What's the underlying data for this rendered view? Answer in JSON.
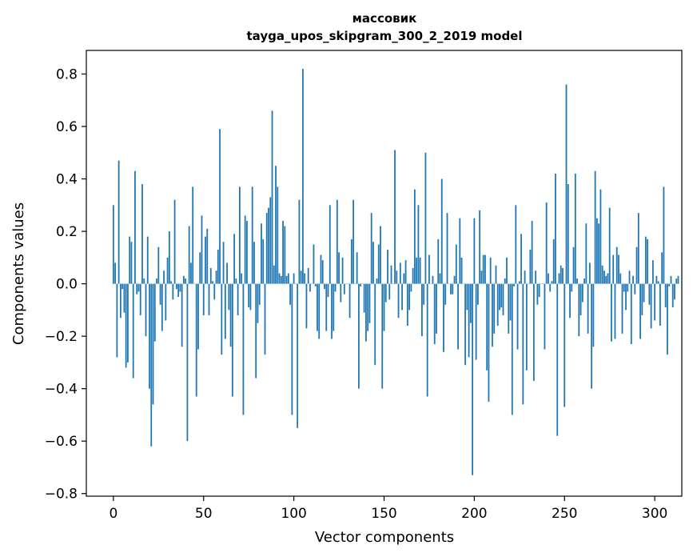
{
  "chart_data": {
    "type": "bar",
    "title_line1": "массовик",
    "title_line2": "tayga_upos_skipgram_300_2_2019 model",
    "xlabel": "Vector components",
    "ylabel": "Components values",
    "xlim": [
      -15,
      315
    ],
    "ylim": [
      -0.81,
      0.89
    ],
    "xticks": [
      0,
      50,
      100,
      150,
      200,
      250,
      300
    ],
    "xtick_labels": [
      "0",
      "50",
      "100",
      "150",
      "200",
      "250",
      "300"
    ],
    "yticks": [
      -0.8,
      -0.6,
      -0.4,
      -0.2,
      0.0,
      0.2,
      0.4,
      0.6,
      0.8
    ],
    "ytick_labels": [
      "−0.8",
      "−0.6",
      "−0.4",
      "−0.2",
      "0.0",
      "0.2",
      "0.4",
      "0.6",
      "0.8"
    ],
    "bar_color": "#1f77b4",
    "grid": false,
    "values": [
      0.3,
      0.08,
      -0.28,
      0.47,
      -0.13,
      -0.02,
      -0.11,
      -0.32,
      -0.3,
      0.18,
      0.16,
      -0.36,
      0.43,
      -0.04,
      -0.03,
      -0.12,
      0.38,
      0.02,
      -0.2,
      0.18,
      -0.4,
      -0.62,
      -0.46,
      -0.22,
      0.02,
      0.14,
      -0.08,
      -0.18,
      0.05,
      -0.14,
      0.1,
      0.2,
      0.01,
      -0.06,
      0.32,
      -0.02,
      -0.05,
      -0.03,
      -0.24,
      0.03,
      0.02,
      -0.6,
      0.22,
      0.08,
      0.37,
      0.0,
      -0.43,
      -0.25,
      0.12,
      0.26,
      -0.12,
      0.18,
      0.21,
      -0.12,
      0.06,
      0.01,
      -0.06,
      0.05,
      0.13,
      0.59,
      -0.27,
      0.16,
      -0.21,
      0.08,
      -0.1,
      -0.24,
      -0.43,
      0.19,
      0.02,
      -0.12,
      0.37,
      0.04,
      -0.5,
      0.26,
      0.24,
      -0.09,
      -0.1,
      0.37,
      0.16,
      -0.36,
      -0.15,
      -0.08,
      0.23,
      0.17,
      -0.27,
      0.27,
      0.29,
      0.33,
      0.66,
      0.07,
      0.45,
      0.37,
      0.04,
      0.03,
      0.24,
      0.22,
      0.03,
      0.04,
      -0.08,
      -0.5,
      0.04,
      0.0,
      -0.55,
      0.32,
      0.05,
      0.82,
      0.04,
      -0.17,
      0.06,
      -0.03,
      0.0,
      0.15,
      -0.01,
      -0.18,
      -0.21,
      0.11,
      0.09,
      -0.02,
      -0.18,
      -0.05,
      0.3,
      -0.21,
      -0.18,
      -0.03,
      0.32,
      0.12,
      -0.07,
      0.1,
      -0.04,
      0.0,
      0.0,
      -0.13,
      0.17,
      0.32,
      0.0,
      0.12,
      -0.4,
      -0.01,
      0.0,
      -0.11,
      -0.22,
      -0.18,
      -0.15,
      0.27,
      0.16,
      -0.31,
      0.02,
      0.15,
      0.22,
      -0.4,
      -0.18,
      -0.07,
      0.13,
      -0.06,
      0.07,
      0.0,
      0.51,
      0.05,
      -0.13,
      0.08,
      -0.1,
      0.04,
      0.09,
      -0.16,
      -0.1,
      -0.03,
      0.06,
      0.36,
      0.1,
      0.3,
      0.1,
      -0.2,
      -0.08,
      0.5,
      -0.43,
      0.11,
      0.0,
      0.03,
      -0.23,
      -0.19,
      0.17,
      0.04,
      0.4,
      -0.26,
      -0.08,
      0.27,
      0.0,
      -0.04,
      -0.04,
      0.03,
      0.15,
      -0.25,
      0.25,
      0.1,
      0.0,
      -0.31,
      -0.1,
      -0.28,
      -0.15,
      -0.73,
      0.25,
      -0.29,
      -0.08,
      0.28,
      0.05,
      0.11,
      0.11,
      -0.33,
      -0.45,
      0.1,
      -0.24,
      -0.19,
      0.07,
      -0.16,
      -0.1,
      -0.09,
      -0.12,
      0.02,
      0.1,
      -0.19,
      -0.14,
      -0.5,
      -0.01,
      0.3,
      -0.25,
      0.01,
      0.19,
      -0.46,
      0.05,
      -0.33,
      0.0,
      0.13,
      0.24,
      -0.37,
      0.05,
      -0.08,
      -0.05,
      0.0,
      0.0,
      -0.25,
      0.31,
      0.04,
      -0.03,
      0.01,
      0.17,
      0.42,
      -0.58,
      0.04,
      0.07,
      0.06,
      -0.47,
      0.76,
      0.38,
      -0.13,
      -0.03,
      0.14,
      0.42,
      0.02,
      -0.2,
      -0.12,
      -0.07,
      0.02,
      0.23,
      -0.19,
      0.08,
      -0.4,
      -0.24,
      0.43,
      0.25,
      0.23,
      0.36,
      0.07,
      0.05,
      0.03,
      0.04,
      0.29,
      -0.22,
      0.11,
      -0.21,
      0.14,
      0.11,
      0.04,
      -0.19,
      -0.03,
      -0.1,
      -0.03,
      0.05,
      -0.23,
      0.03,
      -0.04,
      0.14,
      0.27,
      -0.21,
      -0.12,
      -0.07,
      0.18,
      0.17,
      -0.08,
      -0.17,
      0.09,
      -0.14,
      0.03,
      0.01,
      -0.16,
      0.12,
      0.37,
      -0.09,
      -0.27,
      -0.01,
      0.03,
      -0.09,
      -0.06,
      0.02,
      0.03
    ]
  }
}
